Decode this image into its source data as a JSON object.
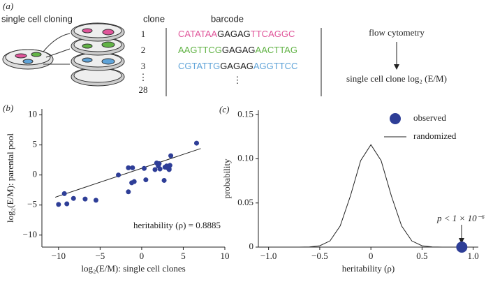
{
  "panel_a": {
    "panel": "(a)",
    "title": "single cell cloning",
    "clone_header": "clone",
    "barcode_header": "barcode",
    "clones": [
      "1",
      "2",
      "3",
      "⋮",
      "28"
    ],
    "barcodes": [
      {
        "segments": [
          {
            "text": "CATATAA",
            "color": "#e0559a"
          },
          {
            "text": "GAGAG",
            "color": "#222222"
          },
          {
            "text": "TTCAGGC",
            "color": "#e0559a"
          }
        ]
      },
      {
        "segments": [
          {
            "text": "AAGTTCG",
            "color": "#62b346"
          },
          {
            "text": "GAGAG",
            "color": "#222222"
          },
          {
            "text": "AACTTAG",
            "color": "#62b346"
          }
        ]
      },
      {
        "segments": [
          {
            "text": "CGTATTG",
            "color": "#5fa3d8"
          },
          {
            "text": "GAGAG",
            "color": "#222222"
          },
          {
            "text": "AGGTTCC",
            "color": "#5fa3d8"
          }
        ]
      }
    ],
    "barcode_more": "⋮",
    "method": "flow cytometry",
    "result": "single cell clone log₂ (E/M)"
  },
  "chart_data": [
    {
      "type": "scatter",
      "panel": "(b)",
      "x_label": "log₂(E/M): single cell clones",
      "y_label": "log₂(E/M): parental pool",
      "annotation": "heritability (ρ) = 0.8885",
      "color": "#2e3e97",
      "x": [
        -10,
        -9.3,
        -9,
        -8.2,
        -6.8,
        -5.5,
        -2.8,
        -1.6,
        -1.6,
        -1.1,
        -0.9,
        -1.2,
        0.3,
        0.5,
        1.6,
        1.8,
        2.1,
        2.2,
        2.8,
        2.7,
        3.1,
        3.3,
        3.4,
        3.5,
        3.3,
        6.6,
        2,
        3
      ],
      "values": [
        -4.9,
        -3.1,
        -4.8,
        -3.9,
        -4,
        -4.2,
        0,
        1.2,
        -2.8,
        1.2,
        -1.1,
        -1.3,
        1.1,
        -0.8,
        0.9,
        2,
        1.9,
        1,
        1.3,
        -0.9,
        1.2,
        0.9,
        1.6,
        3.2,
        1,
        5.3,
        1.5,
        1.5
      ],
      "fit": {
        "x": [
          -10.4,
          7.1
        ],
        "values": [
          -3.7,
          4.4
        ]
      },
      "xlim": [
        -12,
        10
      ],
      "ylim": [
        -12,
        11
      ],
      "xticks": [
        {
          "value": -10,
          "label": "−10"
        },
        {
          "value": -5,
          "label": "−5"
        },
        0,
        5,
        10
      ],
      "yticks": [
        {
          "value": -10,
          "label": "−10"
        },
        {
          "value": -5,
          "label": "−5"
        },
        0,
        5,
        10
      ]
    },
    {
      "type": "line",
      "panel": "(c)",
      "x_label": "heritability (ρ)",
      "y_label": "probability",
      "annotation": "p < 1 × 10⁻⁶",
      "series": [
        {
          "name": "randomized",
          "color": "#222222",
          "x": [
            -1,
            -0.9,
            -0.8,
            -0.7,
            -0.6,
            -0.5,
            -0.4,
            -0.3,
            -0.2,
            -0.1,
            0,
            0.1,
            0.2,
            0.3,
            0.4,
            0.5,
            0.6,
            0.7,
            0.8,
            0.9,
            1
          ],
          "values": [
            0,
            0,
            0,
            0,
            0.0002,
            0.0015,
            0.007,
            0.024,
            0.058,
            0.098,
            0.116,
            0.098,
            0.058,
            0.024,
            0.007,
            0.0015,
            0.0002,
            0,
            0,
            0,
            0
          ]
        },
        {
          "name": "observed",
          "color": "#2e3e97",
          "mode": "marker",
          "x": [
            0.8885
          ],
          "values": [
            0
          ]
        }
      ],
      "xlim": [
        -1.1,
        1.05
      ],
      "ylim": [
        0,
        0.155
      ],
      "xticks": [
        {
          "value": -1,
          "label": "−1.0"
        },
        {
          "value": -0.5,
          "label": "−0.5"
        },
        0,
        0.5,
        {
          "value": 1,
          "label": "1.0"
        }
      ],
      "yticks": [
        0,
        0.05,
        {
          "value": 0.1,
          "label": "0.10"
        },
        0.15
      ]
    }
  ]
}
